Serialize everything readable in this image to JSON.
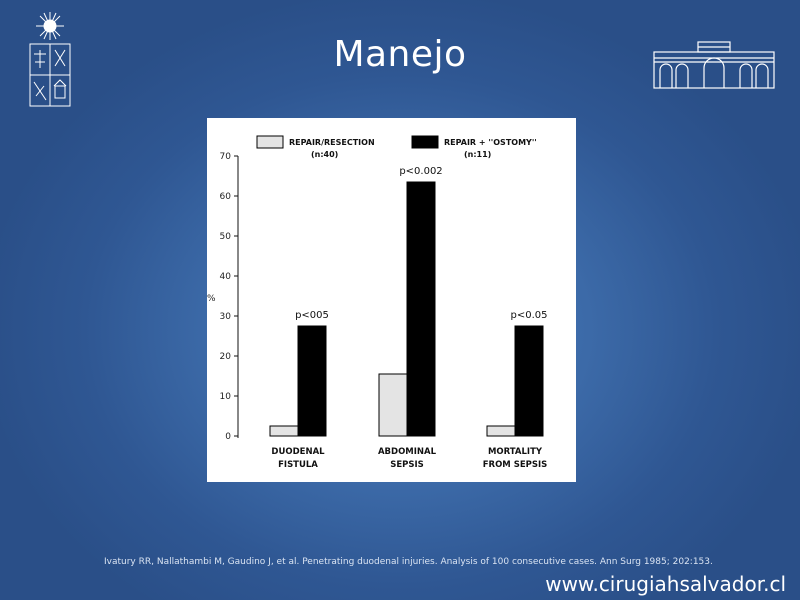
{
  "slide": {
    "title": "Manejo",
    "citation": "Ivatury RR, Nallathambi M, Gaudino J, et al. Penetrating duodenal injuries. Analysis of 100 consecutive cases. Ann Surg 1985; 202:153.",
    "website": "www.cirugiahsalvador.cl",
    "logo_left_icon": "university-seal-icon",
    "logo_right_icon": "hospital-building-icon"
  },
  "chart_data": {
    "type": "bar",
    "categories": [
      [
        "DUODENAL",
        "FISTULA"
      ],
      [
        "ABDOMINAL",
        "SEPSIS"
      ],
      [
        "MORTALITY",
        "FROM SEPSIS"
      ]
    ],
    "series": [
      {
        "name": "REPAIR/RESECTION",
        "sub": "(n:40)",
        "values": [
          2.5,
          15.5,
          2.5
        ],
        "color": "#e4e4e4"
      },
      {
        "name": "REPAIR + ''OSTOMY''",
        "sub": "(n:11)",
        "values": [
          27.5,
          63.5,
          27.5
        ],
        "color": "#000000"
      }
    ],
    "annotations": [
      "p<005",
      "p<0.002",
      "p<0.05"
    ],
    "ylabel": "%",
    "ylim": [
      0,
      70
    ],
    "yticks": [
      0,
      10,
      20,
      30,
      40,
      50,
      60,
      70
    ],
    "grid": false,
    "legend": "top"
  }
}
